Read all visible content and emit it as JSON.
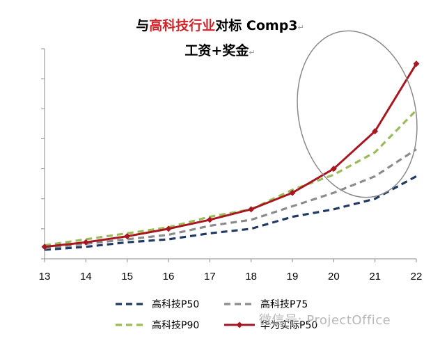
{
  "title": {
    "line1_prefix": "与",
    "line1_highlight": "高科技行业",
    "line1_suffix": "对标 Comp3",
    "line2": "工资+奖金",
    "return_mark": "↵"
  },
  "watermark": "微信号: ProjectOffice",
  "colors": {
    "p50": "#1f3864",
    "p75": "#8c8c8c",
    "p90": "#9bbb59",
    "huawei": "#a8161f",
    "ellipse": "#8a8a8a",
    "axis": "#888888"
  },
  "chart_data": {
    "type": "line",
    "x": [
      13,
      14,
      15,
      16,
      17,
      18,
      19,
      20,
      21,
      22
    ],
    "xlim": [
      13,
      22
    ],
    "ylim": [
      0,
      7
    ],
    "yticks_count": 7,
    "grid": false,
    "legend_position": "bottom",
    "series": [
      {
        "name": "高科技P50",
        "style": "dashed",
        "color": "#1f3864",
        "values": [
          0.3,
          0.4,
          0.55,
          0.65,
          0.85,
          1.0,
          1.4,
          1.65,
          2.0,
          2.75
        ]
      },
      {
        "name": "高科技P75",
        "style": "dashed",
        "color": "#8c8c8c",
        "values": [
          0.35,
          0.5,
          0.65,
          0.8,
          1.1,
          1.3,
          1.75,
          2.2,
          2.75,
          3.65
        ]
      },
      {
        "name": "高科技P90",
        "style": "dashed",
        "color": "#9bbb59",
        "values": [
          0.45,
          0.65,
          0.85,
          1.05,
          1.4,
          1.65,
          2.3,
          2.8,
          3.55,
          4.95
        ]
      },
      {
        "name": "华为实际P50",
        "style": "solid-marker",
        "color": "#a8161f",
        "values": [
          0.4,
          0.55,
          0.75,
          1.0,
          1.3,
          1.65,
          2.2,
          3.0,
          4.25,
          6.5
        ]
      }
    ]
  }
}
